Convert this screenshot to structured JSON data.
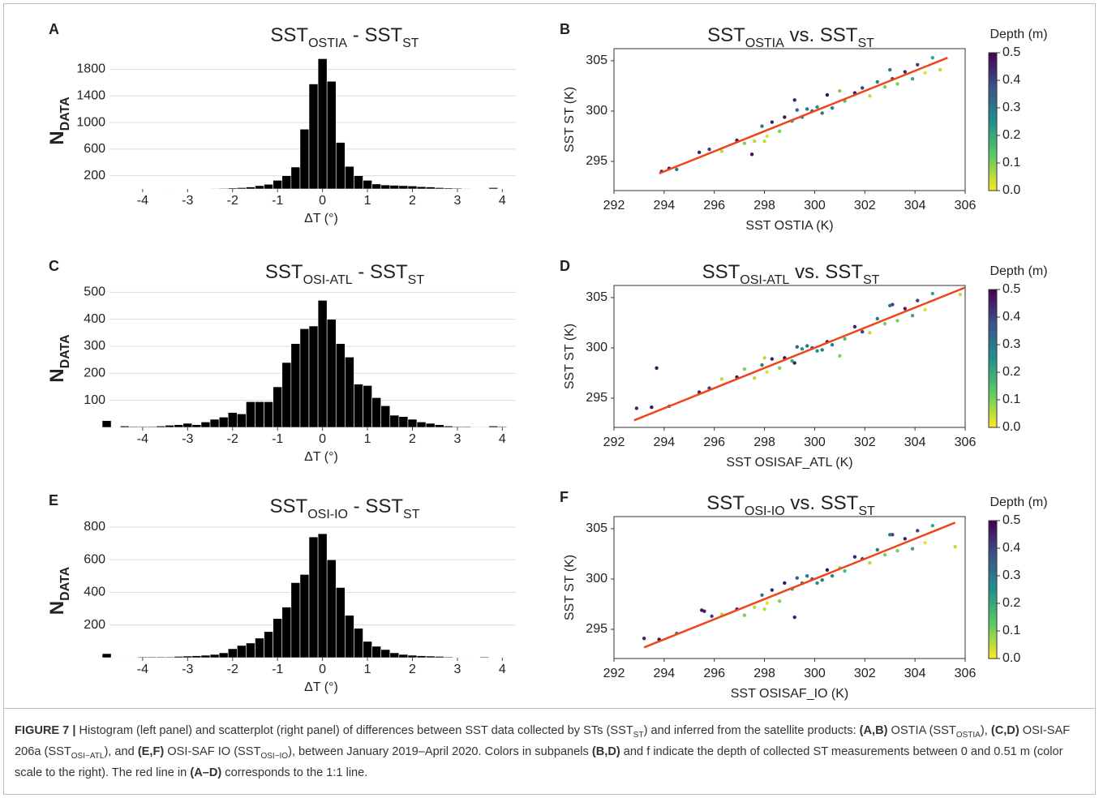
{
  "chart_data": [
    {
      "type": "histogram",
      "panel_label": "A",
      "title": [
        {
          "text": "SST"
        },
        {
          "text": "OSTIA",
          "sub": true
        },
        {
          "text": " - SST"
        },
        {
          "text": "ST",
          "sub": true
        }
      ],
      "xlabel": "ΔT (°)",
      "ylabel": [
        {
          "text": "N"
        },
        {
          "text": "DATA",
          "sub": true
        }
      ],
      "bins": [
        -4.9,
        -4.7,
        -4.5,
        -4.3,
        -4.1,
        -3.9,
        -3.7,
        -3.5,
        -3.3,
        -3.1,
        -2.9,
        -2.7,
        -2.5,
        -2.3,
        -2.1,
        -1.9,
        -1.7,
        -1.5,
        -1.3,
        -1.1,
        -0.9,
        -0.7,
        -0.5,
        -0.3,
        -0.1,
        0.1,
        0.3,
        0.5,
        0.7,
        0.9,
        1.1,
        1.3,
        1.5,
        1.7,
        1.9,
        2.1,
        2.3,
        2.5,
        2.7,
        2.9,
        3.1,
        3.3,
        3.5,
        3.7,
        3.9,
        4.1
      ],
      "values": [
        5,
        0,
        0,
        0,
        3,
        0,
        0,
        2,
        0,
        3,
        3,
        5,
        8,
        10,
        15,
        20,
        30,
        50,
        70,
        130,
        200,
        330,
        900,
        1580,
        1960,
        1620,
        700,
        340,
        200,
        130,
        75,
        60,
        55,
        50,
        45,
        35,
        30,
        20,
        15,
        12,
        8,
        5,
        5,
        20,
        3
      ],
      "color": "#000000",
      "xlim": [
        -4.9,
        4.3
      ],
      "xticks": [
        -4,
        -3,
        -2,
        -1,
        0,
        1,
        2,
        3,
        4
      ],
      "ylim": [
        0,
        2050
      ],
      "yticks": [
        200,
        600,
        1000,
        1400,
        1800
      ],
      "grid": true
    },
    {
      "type": "scatter",
      "panel_label": "B",
      "title": [
        {
          "text": "SST"
        },
        {
          "text": "OSTIA",
          "sub": true
        },
        {
          "text": " vs. SST"
        },
        {
          "text": "ST",
          "sub": true
        }
      ],
      "xlabel": "SST OSTIA (K)",
      "ylabel": "SST ST (K)",
      "x": [
        293.9,
        294.2,
        294.5,
        295.4,
        295.8,
        296.3,
        296.9,
        297.2,
        297.6,
        297.9,
        298.1,
        298.3,
        298.6,
        298.8,
        299.1,
        299.3,
        299.5,
        299.7,
        299.9,
        300.1,
        300.3,
        300.5,
        300.7,
        301.2,
        301.6,
        301.9,
        302.2,
        302.5,
        302.8,
        303.1,
        303.3,
        303.6,
        303.9,
        304.1,
        304.4,
        304.7,
        305.0,
        299.2,
        298.0,
        303.0,
        297.5,
        301.0
      ],
      "values": [
        294.0,
        294.3,
        294.2,
        295.9,
        296.2,
        296.0,
        297.1,
        296.8,
        297.0,
        298.5,
        297.5,
        298.9,
        298.0,
        299.4,
        299.0,
        300.1,
        299.4,
        300.2,
        300.0,
        300.4,
        299.8,
        301.6,
        300.3,
        301.0,
        301.8,
        302.3,
        301.5,
        302.9,
        302.4,
        303.2,
        302.7,
        303.9,
        303.2,
        304.6,
        303.8,
        305.3,
        304.1,
        301.1,
        297.0,
        304.1,
        295.7,
        302.0
      ],
      "color_values": [
        0.45,
        0.48,
        0.3,
        0.45,
        0.4,
        0.05,
        0.45,
        0.1,
        0.05,
        0.3,
        0.02,
        0.45,
        0.1,
        0.48,
        0.2,
        0.35,
        0.25,
        0.3,
        0.35,
        0.25,
        0.3,
        0.48,
        0.28,
        0.15,
        0.45,
        0.4,
        0.05,
        0.3,
        0.1,
        0.4,
        0.1,
        0.45,
        0.2,
        0.4,
        0.02,
        0.2,
        0.05,
        0.45,
        0.05,
        0.3,
        0.48,
        0.1
      ],
      "reference_line": {
        "x": [
          293.8,
          305.3
        ],
        "values": [
          293.8,
          305.3
        ],
        "color": "#f0441a"
      },
      "xlim": [
        292,
        306
      ],
      "xticks": [
        292,
        294,
        296,
        298,
        300,
        302,
        304,
        306
      ],
      "ylim": [
        292.1,
        306.2
      ],
      "yticks": [
        295,
        300,
        305
      ],
      "colorbar": {
        "title": "Depth (m)",
        "lim": [
          0,
          0.5
        ],
        "ticks": [
          {
            "value": 0,
            "label": "0.0"
          },
          0.1,
          0.2,
          0.3,
          0.4,
          0.5
        ],
        "colormap": [
          "#fde725",
          "#5ec962",
          "#21918c",
          "#3b528b",
          "#440154"
        ]
      }
    },
    {
      "type": "histogram",
      "panel_label": "C",
      "title": [
        {
          "text": "SST"
        },
        {
          "text": "OSI-ATL",
          "sub": true
        },
        {
          "text": " - SST"
        },
        {
          "text": "ST",
          "sub": true
        }
      ],
      "xlabel": "ΔT (°)",
      "ylabel": [
        {
          "text": "N"
        },
        {
          "text": "DATA",
          "sub": true
        }
      ],
      "bins": [
        -4.9,
        -4.7,
        -4.5,
        -4.3,
        -4.1,
        -3.9,
        -3.7,
        -3.5,
        -3.3,
        -3.1,
        -2.9,
        -2.7,
        -2.5,
        -2.3,
        -2.1,
        -1.9,
        -1.7,
        -1.5,
        -1.3,
        -1.1,
        -0.9,
        -0.7,
        -0.5,
        -0.3,
        -0.1,
        0.1,
        0.3,
        0.5,
        0.7,
        0.9,
        1.1,
        1.3,
        1.5,
        1.7,
        1.9,
        2.1,
        2.3,
        2.5,
        2.7,
        2.9,
        3.1,
        3.3,
        3.5,
        3.7,
        3.9,
        4.1
      ],
      "values": [
        25,
        0,
        5,
        3,
        3,
        3,
        5,
        8,
        10,
        15,
        10,
        20,
        30,
        38,
        55,
        50,
        95,
        95,
        95,
        150,
        240,
        310,
        365,
        375,
        470,
        400,
        310,
        260,
        160,
        155,
        110,
        80,
        45,
        40,
        30,
        20,
        15,
        10,
        5,
        3,
        3,
        2,
        2,
        5,
        3
      ],
      "color": "#000000",
      "xlim": [
        -4.9,
        4.3
      ],
      "xticks": [
        -4,
        -3,
        -2,
        -1,
        0,
        1,
        2,
        3,
        4
      ],
      "ylim": [
        0,
        510
      ],
      "yticks": [
        100,
        200,
        300,
        400,
        500
      ],
      "grid": true
    },
    {
      "type": "scatter",
      "panel_label": "D",
      "title": [
        {
          "text": "SST"
        },
        {
          "text": "OSI-ATL",
          "sub": true
        },
        {
          "text": " vs. SST"
        },
        {
          "text": "ST",
          "sub": true
        }
      ],
      "xlabel": "SST OSISAF_ATL (K)",
      "ylabel": "SST ST (K)",
      "x": [
        292.9,
        293.5,
        294.2,
        295.4,
        295.8,
        296.3,
        296.9,
        297.2,
        297.6,
        297.9,
        298.1,
        298.3,
        298.6,
        298.8,
        299.1,
        299.3,
        299.5,
        299.7,
        299.9,
        300.1,
        300.3,
        300.5,
        300.7,
        301.2,
        301.6,
        301.9,
        302.2,
        302.5,
        302.8,
        303.1,
        303.3,
        303.6,
        303.9,
        304.1,
        304.4,
        304.7,
        305.8,
        299.2,
        298.0,
        303.0,
        293.7,
        301.0
      ],
      "values": [
        294.0,
        294.1,
        294.2,
        295.6,
        296.0,
        296.9,
        297.1,
        297.9,
        297.0,
        298.3,
        297.6,
        298.9,
        298.0,
        299.0,
        298.7,
        300.1,
        299.9,
        300.2,
        300.0,
        299.7,
        299.8,
        300.6,
        300.3,
        300.9,
        302.1,
        301.6,
        301.5,
        302.9,
        302.4,
        304.3,
        302.7,
        303.9,
        303.2,
        304.7,
        303.8,
        305.4,
        305.3,
        298.5,
        299.0,
        304.2,
        298.0,
        299.2
      ],
      "color_values": [
        0.45,
        0.48,
        0.3,
        0.45,
        0.4,
        0.05,
        0.45,
        0.1,
        0.05,
        0.3,
        0.02,
        0.45,
        0.1,
        0.48,
        0.2,
        0.35,
        0.25,
        0.3,
        0.35,
        0.25,
        0.3,
        0.48,
        0.28,
        0.15,
        0.45,
        0.4,
        0.05,
        0.3,
        0.1,
        0.4,
        0.1,
        0.45,
        0.2,
        0.4,
        0.02,
        0.2,
        0.05,
        0.45,
        0.05,
        0.3,
        0.48,
        0.1
      ],
      "reference_line": {
        "x": [
          292.8,
          306.0
        ],
        "values": [
          292.8,
          306.0
        ],
        "color": "#f0441a"
      },
      "xlim": [
        292,
        306
      ],
      "xticks": [
        292,
        294,
        296,
        298,
        300,
        302,
        304,
        306
      ],
      "ylim": [
        292.1,
        306.2
      ],
      "yticks": [
        295,
        300,
        305
      ],
      "colorbar": {
        "title": "Depth (m)",
        "lim": [
          0,
          0.5
        ],
        "ticks": [
          {
            "value": 0,
            "label": "0.0"
          },
          0.1,
          0.2,
          0.3,
          0.4,
          0.5
        ],
        "colormap": [
          "#fde725",
          "#5ec962",
          "#21918c",
          "#3b528b",
          "#440154"
        ]
      }
    },
    {
      "type": "histogram",
      "panel_label": "E",
      "title": [
        {
          "text": "SST"
        },
        {
          "text": "OSI-IO",
          "sub": true
        },
        {
          "text": " - SST"
        },
        {
          "text": "ST",
          "sub": true
        }
      ],
      "xlabel": "ΔT (°)",
      "ylabel": [
        {
          "text": "N"
        },
        {
          "text": "DATA",
          "sub": true
        }
      ],
      "bins": [
        -4.9,
        -4.7,
        -4.5,
        -4.3,
        -4.1,
        -3.9,
        -3.7,
        -3.5,
        -3.3,
        -3.1,
        -2.9,
        -2.7,
        -2.5,
        -2.3,
        -2.1,
        -1.9,
        -1.7,
        -1.5,
        -1.3,
        -1.1,
        -0.9,
        -0.7,
        -0.5,
        -0.3,
        -0.1,
        0.1,
        0.3,
        0.5,
        0.7,
        0.9,
        1.1,
        1.3,
        1.5,
        1.7,
        1.9,
        2.1,
        2.3,
        2.5,
        2.7,
        2.9,
        3.1,
        3.3,
        3.5,
        3.7,
        3.9,
        4.1
      ],
      "values": [
        25,
        0,
        3,
        3,
        5,
        5,
        5,
        5,
        8,
        10,
        12,
        15,
        20,
        30,
        55,
        75,
        90,
        120,
        160,
        240,
        310,
        460,
        510,
        740,
        760,
        600,
        430,
        260,
        180,
        100,
        70,
        50,
        30,
        20,
        15,
        12,
        10,
        8,
        5,
        3,
        3,
        2,
        5,
        2,
        3
      ],
      "color": "#000000",
      "xlim": [
        -4.9,
        4.3
      ],
      "xticks": [
        -4,
        -3,
        -2,
        -1,
        0,
        1,
        2,
        3,
        4
      ],
      "ylim": [
        0,
        820
      ],
      "yticks": [
        200,
        400,
        600,
        800
      ],
      "grid": true
    },
    {
      "type": "scatter",
      "panel_label": "F",
      "title": [
        {
          "text": "SST"
        },
        {
          "text": "OSI-IO",
          "sub": true
        },
        {
          "text": " vs. SST"
        },
        {
          "text": "ST",
          "sub": true
        }
      ],
      "xlabel": "SST OSISAF_IO (K)",
      "ylabel": "SST ST (K)",
      "x": [
        293.2,
        293.8,
        294.5,
        295.6,
        295.9,
        296.3,
        296.9,
        297.2,
        297.6,
        297.9,
        298.1,
        298.3,
        298.6,
        298.8,
        299.1,
        299.3,
        299.5,
        299.7,
        299.9,
        300.1,
        300.3,
        300.5,
        300.7,
        301.2,
        301.6,
        301.9,
        302.2,
        302.5,
        302.8,
        303.1,
        303.3,
        303.6,
        303.9,
        304.1,
        304.4,
        304.7,
        305.6,
        299.2,
        298.0,
        303.0,
        295.5,
        301.0
      ],
      "values": [
        294.1,
        294.0,
        294.6,
        296.8,
        296.3,
        296.5,
        297.0,
        296.4,
        297.2,
        298.4,
        297.6,
        298.9,
        297.8,
        299.6,
        299.0,
        300.1,
        299.6,
        300.3,
        300.0,
        299.6,
        299.9,
        300.9,
        300.3,
        300.8,
        302.2,
        302.0,
        301.6,
        302.9,
        302.4,
        304.4,
        302.8,
        304.0,
        303.0,
        304.8,
        303.6,
        305.3,
        303.2,
        296.2,
        297.0,
        304.4,
        296.9,
        301.1
      ],
      "color_values": [
        0.45,
        0.48,
        0.3,
        0.45,
        0.4,
        0.05,
        0.45,
        0.1,
        0.05,
        0.3,
        0.02,
        0.45,
        0.1,
        0.48,
        0.2,
        0.35,
        0.25,
        0.3,
        0.35,
        0.25,
        0.3,
        0.48,
        0.28,
        0.15,
        0.45,
        0.4,
        0.05,
        0.3,
        0.1,
        0.4,
        0.1,
        0.45,
        0.2,
        0.4,
        0.02,
        0.2,
        0.05,
        0.45,
        0.05,
        0.3,
        0.48,
        0.1
      ],
      "reference_line": {
        "x": [
          293.2,
          305.6
        ],
        "values": [
          293.2,
          305.6
        ],
        "color": "#f0441a"
      },
      "xlim": [
        292,
        306
      ],
      "xticks": [
        292,
        294,
        296,
        298,
        300,
        302,
        304,
        306
      ],
      "ylim": [
        292.1,
        306.2
      ],
      "yticks": [
        295,
        300,
        305
      ],
      "colorbar": {
        "title": "Depth (m)",
        "lim": [
          0,
          0.5
        ],
        "ticks": [
          {
            "value": 0,
            "label": "0.0"
          },
          0.1,
          0.2,
          0.3,
          0.4,
          0.5
        ],
        "colormap": [
          "#fde725",
          "#5ec962",
          "#21918c",
          "#3b528b",
          "#440154"
        ]
      }
    }
  ],
  "caption": [
    {
      "text": "FIGURE 7 | ",
      "bold": true
    },
    {
      "text": "Histogram (left panel) and scatterplot (right panel) of differences between SST data collected by STs (SST"
    },
    {
      "text": "ST",
      "sub": true
    },
    {
      "text": ") and inferred from the satellite products: "
    },
    {
      "text": "(A,B)",
      "bold": true
    },
    {
      "text": " OSTIA (SST"
    },
    {
      "text": "OSTIA",
      "sub": true
    },
    {
      "text": "), "
    },
    {
      "text": "(C,D)",
      "bold": true
    },
    {
      "text": " OSI-SAF 206a (SST"
    },
    {
      "text": "OSI−ATL",
      "sub": true
    },
    {
      "text": "), and "
    },
    {
      "text": "(E,F)",
      "bold": true
    },
    {
      "text": " OSI-SAF IO (SST"
    },
    {
      "text": "OSI−IO",
      "sub": true
    },
    {
      "text": "), between January 2019–April 2020. Colors in subpanels "
    },
    {
      "text": "(B,D)",
      "bold": true
    },
    {
      "text": " and f indicate the depth of collected ST measurements between 0 and 0.51 m (color scale to the right). The red line in "
    },
    {
      "text": "(A–D)",
      "bold": true
    },
    {
      "text": " corresponds to the 1:1 line."
    }
  ]
}
